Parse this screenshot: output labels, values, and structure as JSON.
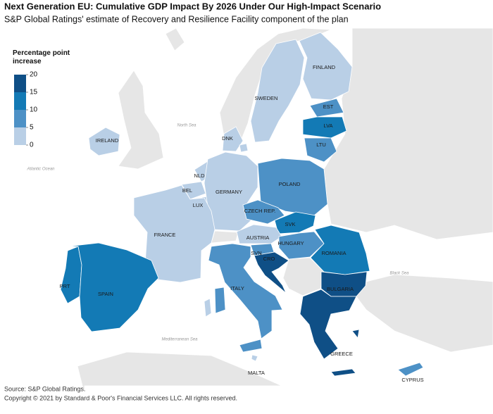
{
  "chart_data": {
    "type": "choropleth",
    "title": "Next Generation EU: Cumulative GDP Impact By 2026 Under Our High-Impact Scenario",
    "subtitle": "S&P Global Ratings' estimate of Recovery and Resilience Facility component of the plan",
    "legend": {
      "title": "Percentage point increase",
      "ticks": [
        0,
        5,
        10,
        15,
        20
      ],
      "colors": [
        "#b9cfe6",
        "#4d91c6",
        "#137ab5",
        "#0f4f86"
      ]
    },
    "regions": [
      {
        "name": "FINLAND",
        "value": 2
      },
      {
        "name": "SWEDEN",
        "value": 1
      },
      {
        "name": "EST",
        "value": 7
      },
      {
        "name": "LVA",
        "value": 11
      },
      {
        "name": "LTU",
        "value": 7
      },
      {
        "name": "IRELAND",
        "value": 1
      },
      {
        "name": "DNK",
        "value": 1
      },
      {
        "name": "NLD",
        "value": 1
      },
      {
        "name": "BEL",
        "value": 2
      },
      {
        "name": "LUX",
        "value": 1
      },
      {
        "name": "GERMANY",
        "value": 2
      },
      {
        "name": "POLAND",
        "value": 8
      },
      {
        "name": "CZECH REP.",
        "value": 7
      },
      {
        "name": "SVK",
        "value": 12
      },
      {
        "name": "AUSTRIA",
        "value": 3
      },
      {
        "name": "HUNGARY",
        "value": 7
      },
      {
        "name": "ROMANIA",
        "value": 11
      },
      {
        "name": "FRANCE",
        "value": 3
      },
      {
        "name": "SVN",
        "value": 7
      },
      {
        "name": "CRO",
        "value": 17
      },
      {
        "name": "PRT",
        "value": 11
      },
      {
        "name": "SPAIN",
        "value": 12
      },
      {
        "name": "ITALY",
        "value": 9
      },
      {
        "name": "BULGARIA",
        "value": 16
      },
      {
        "name": "GREECE",
        "value": 17
      },
      {
        "name": "MALTA",
        "value": 3
      },
      {
        "name": "CYPRUS",
        "value": 8
      }
    ],
    "annotations": [
      "North Sea",
      "Atlantic Ocean",
      "Mediterranean Sea",
      "Black Sea"
    ],
    "source": "Source: S&P Global Ratings.",
    "copyright": "Copyright © 2021 by Standard & Poor's Financial Services LLC. All rights reserved."
  }
}
